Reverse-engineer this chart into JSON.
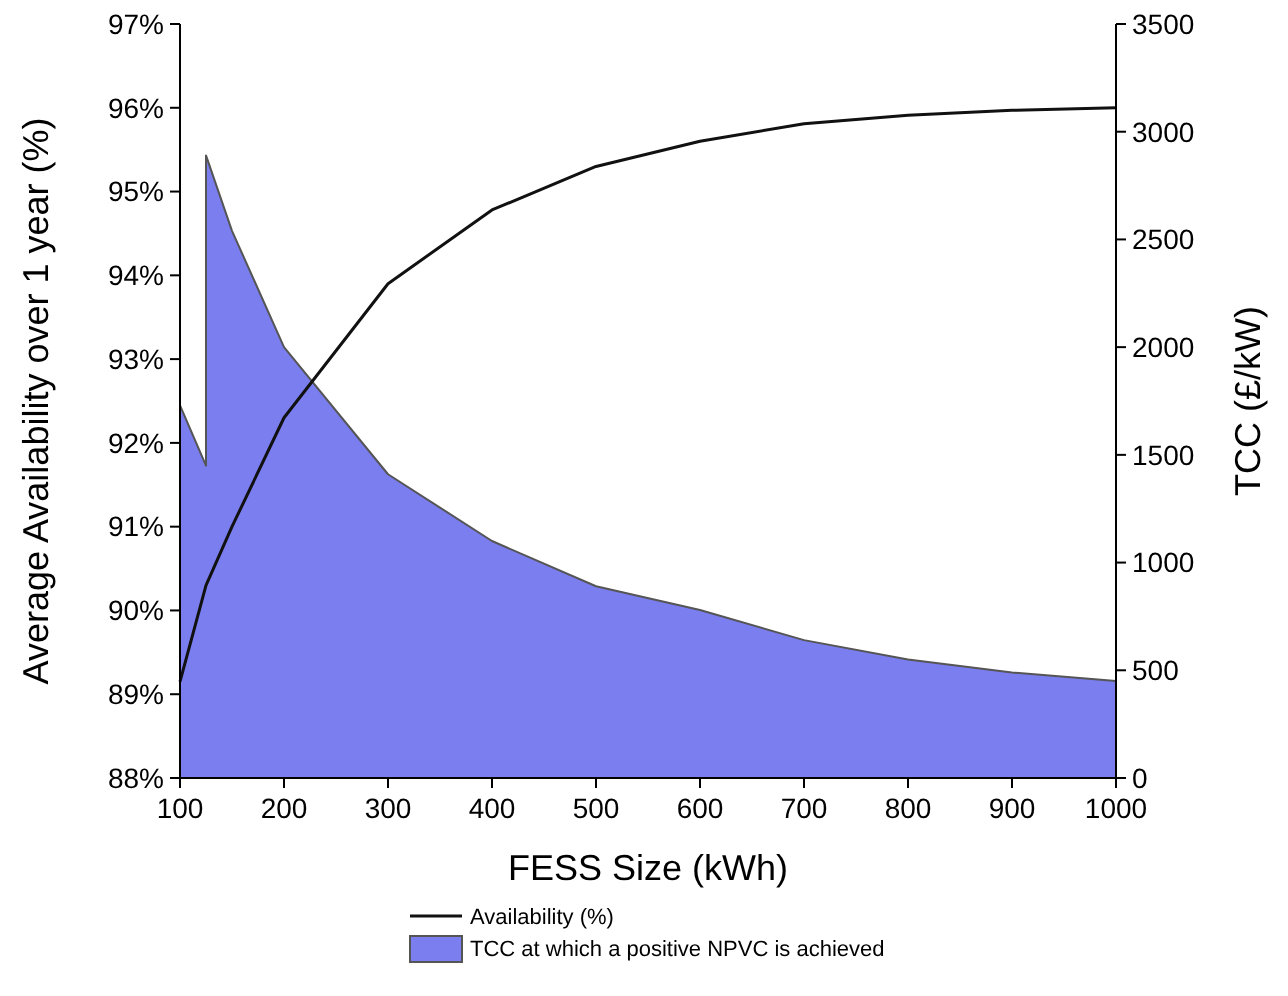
{
  "chart_data": {
    "type": "line",
    "xlabel": "FESS Size (kWh)",
    "ylabel": "Average Availability over 1 year (%)",
    "y2label": "TCC (£/kW)",
    "xlim": [
      100,
      1000
    ],
    "xticks": [
      100,
      200,
      300,
      400,
      500,
      600,
      700,
      800,
      900,
      1000
    ],
    "ylim": [
      88,
      97
    ],
    "yticks": [
      {
        "value": 88,
        "label": "88%"
      },
      {
        "value": 89,
        "label": "89%"
      },
      {
        "value": 90,
        "label": "90%"
      },
      {
        "value": 91,
        "label": "91%"
      },
      {
        "value": 92,
        "label": "92%"
      },
      {
        "value": 93,
        "label": "93%"
      },
      {
        "value": 94,
        "label": "94%"
      },
      {
        "value": 95,
        "label": "95%"
      },
      {
        "value": 96,
        "label": "96%"
      },
      {
        "value": 97,
        "label": "97%"
      }
    ],
    "y2lim": [
      0,
      3500
    ],
    "y2ticks": [
      0,
      500,
      1000,
      1500,
      2000,
      2500,
      3000,
      3500
    ],
    "legend": "bottom",
    "grid": false,
    "series": [
      {
        "name": "TCC at which a positive NPVC is achieved",
        "type": "area",
        "axis": "y2",
        "color": "#7b7eef",
        "x": [
          100,
          125,
          125,
          150,
          200,
          300,
          400,
          500,
          600,
          700,
          800,
          900,
          1000
        ],
        "values": [
          1730,
          1450,
          2890,
          2540,
          2000,
          1410,
          1100,
          890,
          780,
          640,
          550,
          490,
          450
        ]
      },
      {
        "name": "Availability (%)",
        "axis": "y",
        "color": "#111111",
        "x": [
          100,
          125,
          150,
          200,
          300,
          400,
          500,
          600,
          700,
          800,
          900,
          1000
        ],
        "values": [
          89.15,
          90.3,
          91.0,
          92.3,
          93.9,
          94.78,
          95.3,
          95.6,
          95.81,
          95.91,
          95.97,
          96.0
        ]
      }
    ]
  }
}
